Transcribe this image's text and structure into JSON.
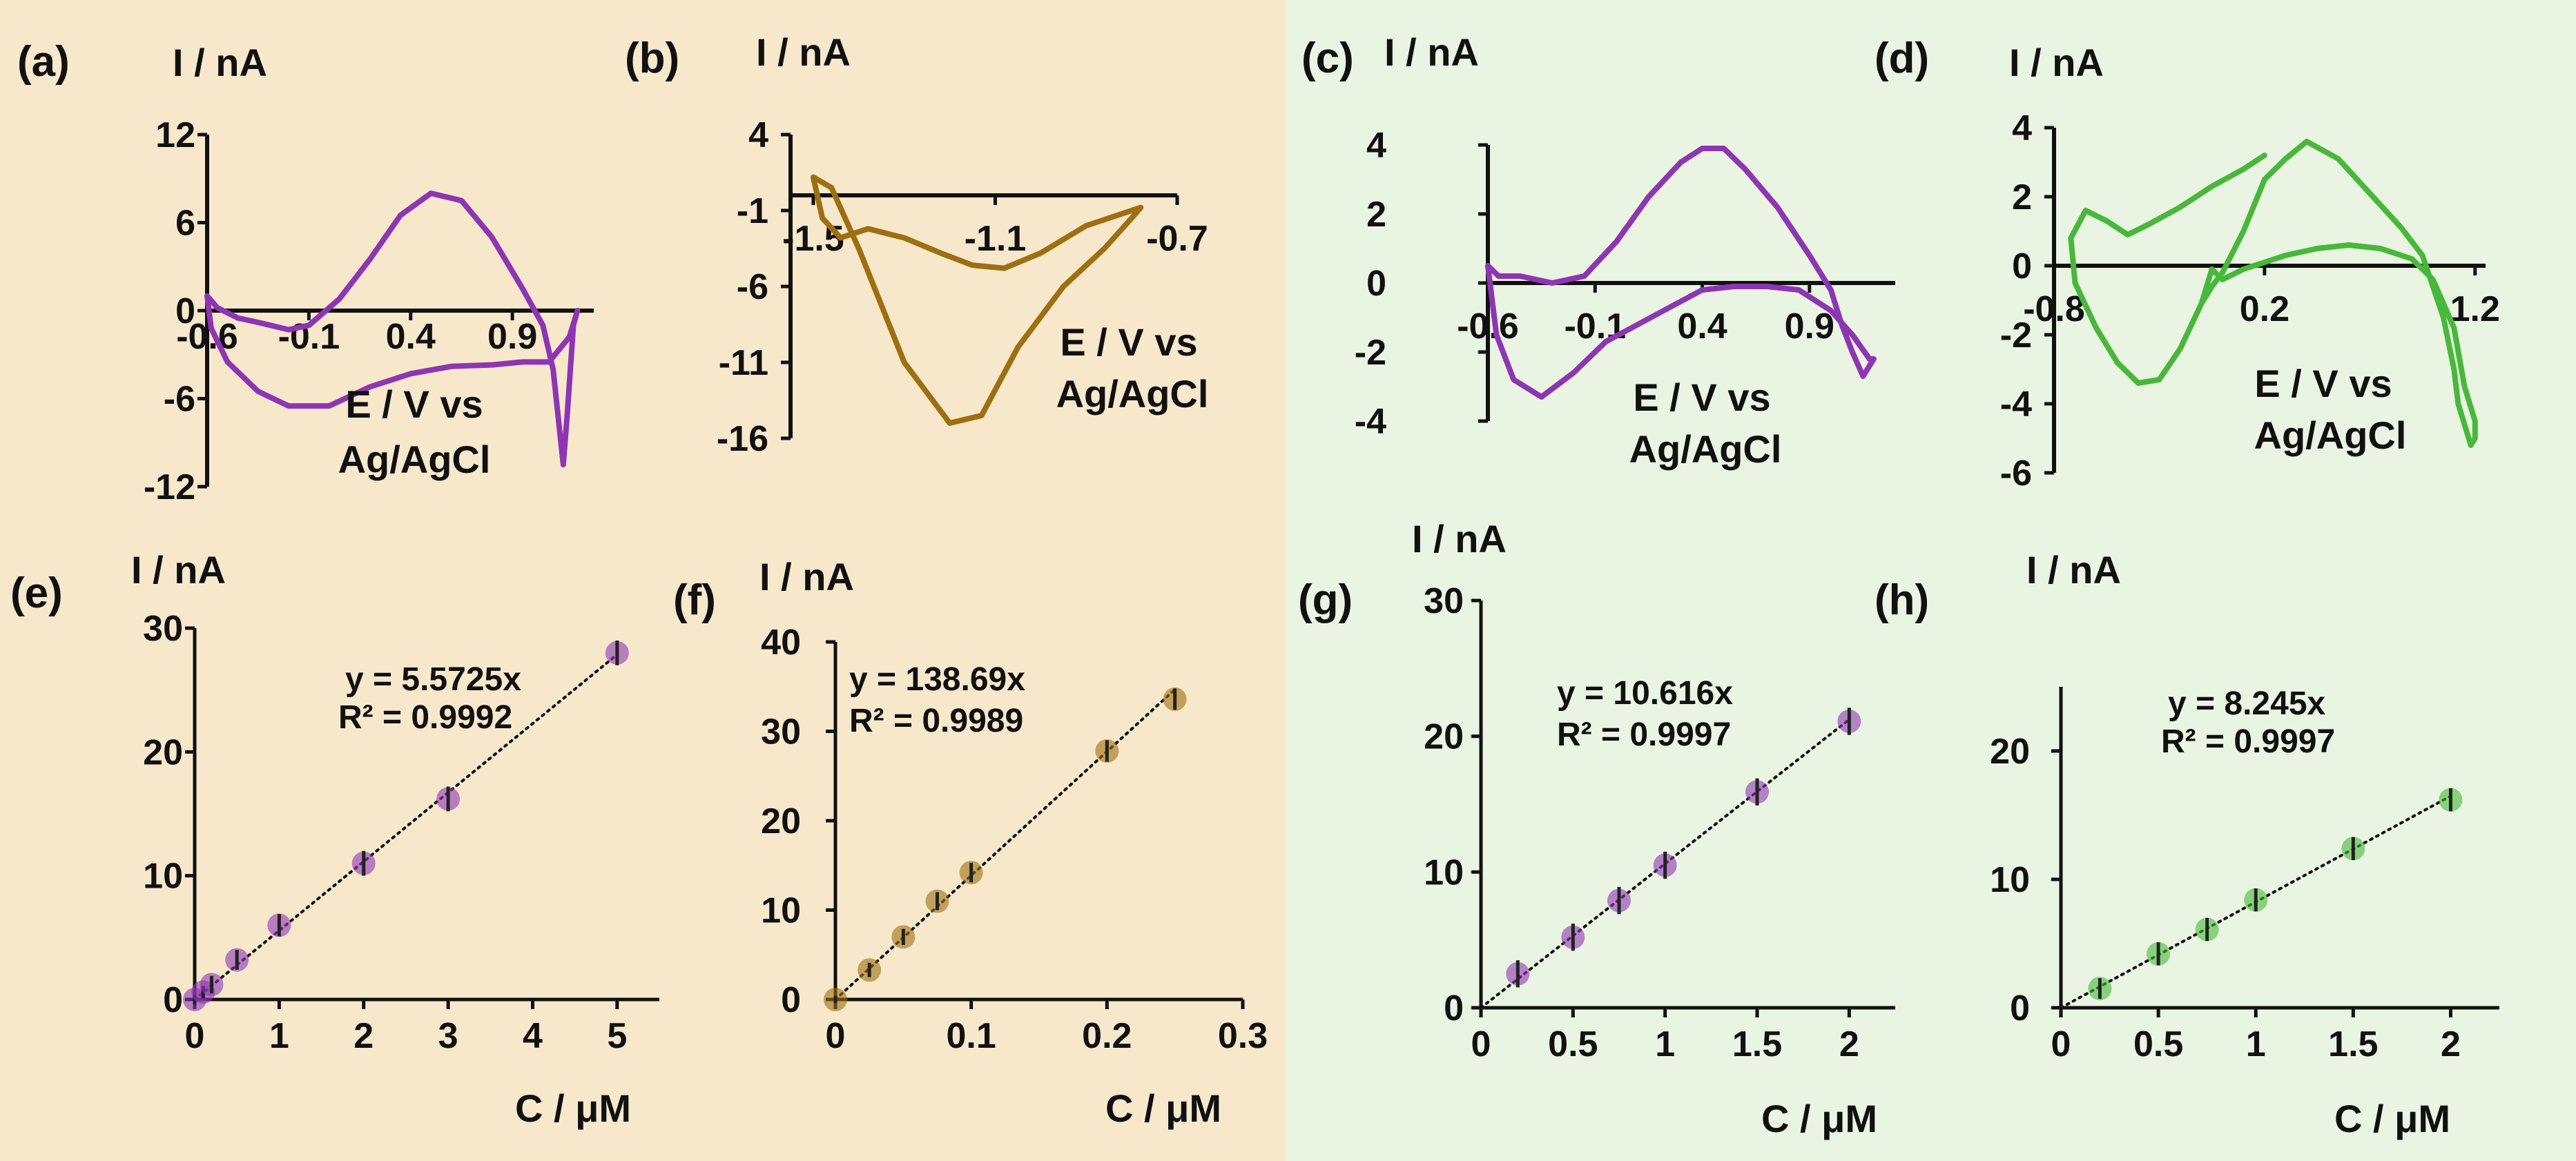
{
  "figure": {
    "background_left": "#f7e8cc",
    "background_right": "#eaf4e2",
    "colors": {
      "purple": "#8e35b4",
      "brown": "#9e6f10",
      "green": "#48b83a",
      "axis": "#111111"
    }
  },
  "chart_data": [
    {
      "id": "a",
      "panel_label": "(a)",
      "type": "line",
      "ylabel": "I / nA",
      "xlabel_line1": "E / V vs",
      "xlabel_line2": "Ag/AgCl",
      "xlim": [
        -0.6,
        1.3
      ],
      "ylim": [
        -12,
        12
      ],
      "xticks": [
        -0.6,
        -0.1,
        0.4,
        0.9
      ],
      "xtick_labels": [
        "-0.6",
        "-0.1",
        "0.4",
        "0.9"
      ],
      "yticks": [
        -12,
        -6,
        0,
        6,
        12
      ],
      "ytick_labels": [
        "-12",
        "-6",
        "0",
        "6",
        "12"
      ],
      "color": "purple",
      "series": [
        {
          "name": "CV",
          "x": [
            -0.6,
            -0.55,
            -0.45,
            -0.35,
            -0.2,
            -0.1,
            0.05,
            0.2,
            0.35,
            0.5,
            0.65,
            0.8,
            0.95,
            1.05,
            1.1,
            1.15,
            1.17,
            1.2,
            1.22,
            1.18,
            1.08,
            0.95,
            0.8,
            0.6,
            0.4,
            0.2,
            0.0,
            -0.2,
            -0.35,
            -0.5,
            -0.58,
            -0.6
          ],
          "y": [
            1,
            0.2,
            -0.5,
            -0.8,
            -1.3,
            -1,
            0.8,
            3.5,
            6.5,
            8,
            7.5,
            5,
            1.5,
            -1,
            -4,
            -10.5,
            -7,
            -1,
            0,
            -1.8,
            -3.5,
            -3.5,
            -3.7,
            -3.8,
            -4.3,
            -5.2,
            -6.5,
            -6.5,
            -5.5,
            -3.5,
            -1.2,
            1
          ]
        }
      ]
    },
    {
      "id": "b",
      "panel_label": "(b)",
      "type": "line",
      "ylabel": "I / nA",
      "xlabel_line1": "E / V vs",
      "xlabel_line2": "Ag/AgCl",
      "xlim": [
        -1.55,
        -0.7
      ],
      "ylim": [
        -16,
        4
      ],
      "xticks": [
        -1.5,
        -1.1,
        -0.7
      ],
      "xtick_labels": [
        "-1.5",
        "-1.1",
        "-0.7"
      ],
      "yticks": [
        4,
        -1,
        -6,
        -11,
        -16
      ],
      "ytick_labels": [
        "4",
        "-1",
        "-6",
        "-11",
        "-16"
      ],
      "color": "brown",
      "series": [
        {
          "name": "CV",
          "x": [
            -0.78,
            -0.9,
            -1.0,
            -1.08,
            -1.15,
            -1.22,
            -1.3,
            -1.38,
            -1.44,
            -1.48,
            -1.5,
            -1.46,
            -1.4,
            -1.3,
            -1.2,
            -1.13,
            -1.05,
            -0.95,
            -0.86,
            -0.8,
            -0.78
          ],
          "y": [
            -0.8,
            -2,
            -3.8,
            -4.8,
            -4.6,
            -3.8,
            -2.8,
            -2.2,
            -2.8,
            -1.5,
            1.2,
            0.5,
            -3.5,
            -11,
            -15,
            -14.5,
            -10,
            -6,
            -3.5,
            -1.5,
            -0.8
          ]
        }
      ]
    },
    {
      "id": "c",
      "panel_label": "(c)",
      "type": "line",
      "ylabel": "I / nA",
      "xlabel_line1": "E / V vs",
      "xlabel_line2": "Ag/AgCl",
      "xlim": [
        -0.6,
        1.3
      ],
      "ylim": [
        -4,
        4
      ],
      "xticks": [
        -0.6,
        -0.1,
        0.4,
        0.9
      ],
      "xtick_labels": [
        "-0.6",
        "-0.1",
        "0.4",
        "0.9"
      ],
      "yticks": [
        -4,
        -2,
        0,
        2,
        4
      ],
      "ytick_labels": [
        "-4",
        "-2",
        "0",
        "2",
        "4"
      ],
      "color": "purple",
      "series": [
        {
          "name": "CV",
          "x": [
            -0.6,
            -0.55,
            -0.45,
            -0.3,
            -0.15,
            0.0,
            0.15,
            0.3,
            0.4,
            0.5,
            0.6,
            0.75,
            0.9,
            1.0,
            1.05,
            1.1,
            1.15,
            1.2,
            1.18,
            1.1,
            1.0,
            0.85,
            0.7,
            0.55,
            0.4,
            0.25,
            0.1,
            -0.05,
            -0.2,
            -0.35,
            -0.48,
            -0.56,
            -0.6
          ],
          "y": [
            0.5,
            0.2,
            0.2,
            0,
            0.2,
            1.2,
            2.5,
            3.5,
            3.9,
            3.9,
            3.3,
            2.2,
            0.8,
            -0.2,
            -1.2,
            -2,
            -2.7,
            -2.2,
            -2.2,
            -1.5,
            -0.8,
            -0.2,
            -0.1,
            -0.1,
            -0.2,
            -0.7,
            -1.2,
            -1.7,
            -2.6,
            -3.3,
            -2.8,
            -1.5,
            0.5
          ]
        }
      ]
    },
    {
      "id": "d",
      "panel_label": "(d)",
      "type": "line",
      "ylabel": "I / nA",
      "xlabel_line1": "E / V vs",
      "xlabel_line2": "Ag/AgCl",
      "xlim": [
        -0.8,
        1.25
      ],
      "ylim": [
        -6,
        4
      ],
      "xticks": [
        -0.8,
        0.2,
        1.2
      ],
      "xtick_labels": [
        "-0.8",
        "0.2",
        "1.2"
      ],
      "yticks": [
        -6,
        -4,
        -2,
        0,
        2,
        4
      ],
      "ytick_labels": [
        "-6",
        "-4",
        "-2",
        "0",
        "2",
        "4"
      ],
      "color": "green",
      "series": [
        {
          "name": "CV",
          "x": [
            -0.1,
            -0.05,
            0.0,
            0.1,
            0.2,
            0.3,
            0.4,
            0.55,
            0.7,
            0.85,
            0.95,
            1.05,
            1.1,
            1.12,
            1.18,
            1.2,
            1.2,
            1.15,
            1.1,
            1.0,
            0.9,
            0.75,
            0.6,
            0.45,
            0.3,
            0.2,
            0.1,
            0.0,
            -0.05,
            -0.1,
            -0.2,
            -0.3,
            -0.4,
            -0.5,
            -0.6,
            -0.7,
            -0.72,
            -0.65,
            -0.55,
            -0.45,
            -0.35,
            -0.2,
            -0.05,
            0.1,
            0.2
          ],
          "y": [
            -1.1,
            -0.6,
            -0.2,
            1,
            2.5,
            3.1,
            3.6,
            3.1,
            2.1,
            1.1,
            0.3,
            -1.5,
            -3,
            -4,
            -5.2,
            -5,
            -4.5,
            -3.5,
            -1.8,
            -0.4,
            0.2,
            0.5,
            0.6,
            0.5,
            0.3,
            0.1,
            -0.1,
            -0.4,
            -0.1,
            -1.1,
            -2.4,
            -3.3,
            -3.4,
            -2.8,
            -1.8,
            -0.5,
            0.8,
            1.6,
            1.3,
            0.9,
            1.2,
            1.7,
            2.3,
            2.8,
            3.2
          ]
        }
      ]
    },
    {
      "id": "e",
      "panel_label": "(e)",
      "type": "scatter",
      "ylabel": "I / nA",
      "xlabel": "C / μM",
      "xlim": [
        0,
        5.5
      ],
      "ylim": [
        0,
        30
      ],
      "xticks": [
        0,
        1,
        2,
        3,
        4,
        5
      ],
      "xtick_labels": [
        "0",
        "1",
        "2",
        "3",
        "4",
        "5"
      ],
      "yticks": [
        0,
        10,
        20,
        30
      ],
      "ytick_labels": [
        "0",
        "10",
        "20",
        "30"
      ],
      "color": "purple",
      "series": [
        {
          "name": "data",
          "x": [
            0,
            0.1,
            0.2,
            0.5,
            1,
            2,
            3,
            5
          ],
          "y": [
            0,
            0.6,
            1.2,
            3.2,
            6,
            11,
            16.2,
            28
          ],
          "err": [
            0.4,
            0.5,
            0.7,
            0.8,
            0.9,
            1,
            1,
            1
          ]
        }
      ],
      "fit": {
        "slope": 5.5725,
        "x_end": 5
      },
      "equation": "y = 5.5725x",
      "r2": "R² = 0.9992"
    },
    {
      "id": "f",
      "panel_label": "(f)",
      "type": "scatter",
      "ylabel": "I / nA",
      "xlabel": "C / μM",
      "xlim": [
        0,
        0.3
      ],
      "ylim": [
        0,
        40
      ],
      "xticks": [
        0,
        0.1,
        0.2,
        0.3
      ],
      "xtick_labels": [
        "0",
        "0.1",
        "0.2",
        "0.3"
      ],
      "yticks": [
        0,
        10,
        20,
        30,
        40
      ],
      "ytick_labels": [
        "0",
        "10",
        "20",
        "30",
        "40"
      ],
      "color": "brown",
      "series": [
        {
          "name": "data",
          "x": [
            0,
            0.025,
            0.05,
            0.075,
            0.1,
            0.2,
            0.25
          ],
          "y": [
            0,
            3.3,
            7,
            11,
            14.2,
            27.8,
            33.6
          ],
          "err": [
            0.4,
            0.8,
            0.9,
            1,
            1.1,
            1.2,
            1.2
          ]
        }
      ],
      "fit": {
        "slope": 138.69,
        "x_end": 0.25
      },
      "equation": "y = 138.69x",
      "r2": "R² = 0.9989"
    },
    {
      "id": "g",
      "panel_label": "(g)",
      "type": "scatter",
      "ylabel": "I / nA",
      "xlabel": "C / μM",
      "xlim": [
        0,
        2.25
      ],
      "ylim": [
        0,
        30
      ],
      "xticks": [
        0,
        0.5,
        1,
        1.5,
        2
      ],
      "xtick_labels": [
        "0",
        "0.5",
        "1",
        "1.5",
        "2"
      ],
      "yticks": [
        0,
        10,
        20,
        30
      ],
      "ytick_labels": [
        "0",
        "10",
        "20",
        "30"
      ],
      "color": "purple",
      "series": [
        {
          "name": "data",
          "x": [
            0.2,
            0.5,
            0.75,
            1,
            1.5,
            2
          ],
          "y": [
            2.5,
            5.2,
            7.9,
            10.5,
            15.9,
            21.1
          ],
          "err": [
            1,
            1,
            1,
            1,
            1,
            1
          ]
        }
      ],
      "fit": {
        "slope": 10.616,
        "x_end": 2
      },
      "equation": "y = 10.616x",
      "r2": "R² = 0.9997"
    },
    {
      "id": "h",
      "panel_label": "(h)",
      "type": "scatter",
      "ylabel": "I / nA",
      "xlabel": "C / μM",
      "xlim": [
        0,
        2.25
      ],
      "ylim": [
        0,
        25
      ],
      "xticks": [
        0,
        0.5,
        1,
        1.5,
        2
      ],
      "xtick_labels": [
        "0",
        "0.5",
        "1",
        "1.5",
        "2"
      ],
      "yticks": [
        0,
        10,
        20
      ],
      "ytick_labels": [
        "0",
        "10",
        "20"
      ],
      "color": "green",
      "series": [
        {
          "name": "data",
          "x": [
            0.2,
            0.5,
            0.75,
            1,
            1.5,
            2
          ],
          "y": [
            1.5,
            4.2,
            6.1,
            8.4,
            12.4,
            16.2
          ],
          "err": [
            0.8,
            0.9,
            0.9,
            0.9,
            0.9,
            0.9
          ]
        }
      ],
      "fit": {
        "slope": 8.245,
        "x_end": 2
      },
      "equation": "y = 8.245x",
      "r2": "R² = 0.9997"
    }
  ]
}
